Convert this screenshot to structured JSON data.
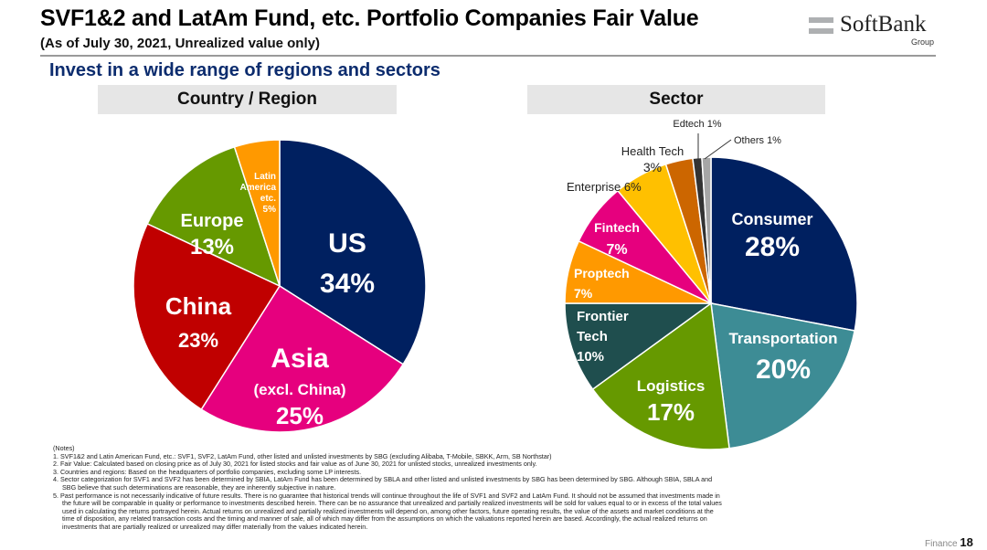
{
  "header": {
    "title": "SVF1&2 and LatAm Fund, etc. Portfolio Companies Fair Value",
    "subtitle": "(As of July 30, 2021, Unrealized value only)",
    "headline": "Invest in a wide range of regions and sectors"
  },
  "logo": {
    "name": "SoftBank",
    "group": "Group"
  },
  "chart_data": [
    {
      "type": "pie",
      "title": "Country / Region",
      "slices": [
        {
          "label": "US",
          "value": 34,
          "color": "#002060"
        },
        {
          "label": "Asia (excl. China)",
          "value": 25,
          "color": "#e6007e"
        },
        {
          "label": "China",
          "value": 23,
          "color": "#c00000"
        },
        {
          "label": "Europe",
          "value": 13,
          "color": "#669900"
        },
        {
          "label": "Latin America etc.",
          "value": 5,
          "color": "#ff9900"
        }
      ],
      "labels": [
        {
          "lines": [
            "US",
            "34%"
          ]
        },
        {
          "lines": [
            "Asia",
            "(excl. China)",
            "25%"
          ]
        },
        {
          "lines": [
            "China",
            "23%"
          ]
        },
        {
          "lines": [
            "Europe",
            "13%"
          ]
        },
        {
          "lines": [
            "Latin",
            "America",
            "etc.",
            "5%"
          ]
        }
      ],
      "start": "12 o'clock, clockwise"
    },
    {
      "type": "pie",
      "title": "Sector",
      "slices": [
        {
          "label": "Consumer",
          "value": 28,
          "color": "#002060"
        },
        {
          "label": "Transportation",
          "value": 20,
          "color": "#3d8c95"
        },
        {
          "label": "Logistics",
          "value": 17,
          "color": "#669900"
        },
        {
          "label": "Frontier Tech",
          "value": 10,
          "color": "#1f4e4e"
        },
        {
          "label": "Proptech",
          "value": 7,
          "color": "#ff9900"
        },
        {
          "label": "Fintech",
          "value": 7,
          "color": "#e6007e"
        },
        {
          "label": "Enterprise",
          "value": 6,
          "color": "#ffc000"
        },
        {
          "label": "Health Tech",
          "value": 3,
          "color": "#cc6600"
        },
        {
          "label": "Edtech",
          "value": 1,
          "color": "#333333"
        },
        {
          "label": "Others",
          "value": 1,
          "color": "#a6a6a6"
        }
      ],
      "labels": [
        {
          "lines": [
            "Consumer",
            "28%"
          ]
        },
        {
          "lines": [
            "Transportation",
            "20%"
          ]
        },
        {
          "lines": [
            "Logistics",
            "17%"
          ]
        },
        {
          "lines": [
            "Frontier",
            "Tech",
            "10%"
          ]
        },
        {
          "lines": [
            "Proptech",
            "7%"
          ]
        },
        {
          "lines": [
            "Fintech",
            "7%"
          ]
        },
        {
          "lines": [
            "Enterprise 6%"
          ]
        },
        {
          "lines": [
            "Health Tech",
            "3%"
          ]
        },
        {
          "lines": [
            "Edtech 1%"
          ]
        },
        {
          "lines": [
            "Others 1%"
          ]
        }
      ],
      "start": "12 o'clock, clockwise"
    }
  ],
  "notes": {
    "heading": "(Notes)",
    "lines": [
      "1. SVF1&2 and Latin American Fund, etc.: SVF1, SVF2, LatAm Fund, other listed and unlisted investments by SBG (excluding Alibaba, T-Mobile, SBKK, Arm, SB Northstar)",
      "2. Fair Value: Calculated based on closing price as of July 30, 2021 for listed stocks and fair value as of June 30, 2021 for unlisted stocks, unrealized investments only.",
      "3. Countries and regions: Based on the headquarters of portfolio companies, excluding some LP interests.",
      "4. Sector categorization for SVF1 and SVF2 has been determined by SBIA, LatAm Fund has been determined by SBLA and other listed and unlisted investments by SBG has been determined by SBG. Although SBIA, SBLA and",
      "SBG believe that such determinations are reasonable, they are inherently subjective in nature.",
      "5. Past performance is not necessarily indicative of future results. There is no guarantee that historical trends will continue throughout the life of SVF1 and SVF2 and LatAm Fund. It should not be assumed that investments made in",
      "the future will be comparable in quality or performance to investments described herein. There can be no assurance that unrealized and partially realized investments will be sold for values equal to or in excess of the total values",
      "used in calculating the returns portrayed herein. Actual returns on unrealized and partially realized investments will depend on, among other factors, future operating results, the value of the assets and market conditions at the",
      "time of disposition, any related transaction costs and the timing and manner of sale, all of which may differ from the assumptions on which the valuations reported herein are based. Accordingly, the actual realized returns on",
      "investments that are partially realized or unrealized may differ materially from the values indicated herein."
    ]
  },
  "footer": {
    "section": "Finance",
    "page": "18"
  }
}
